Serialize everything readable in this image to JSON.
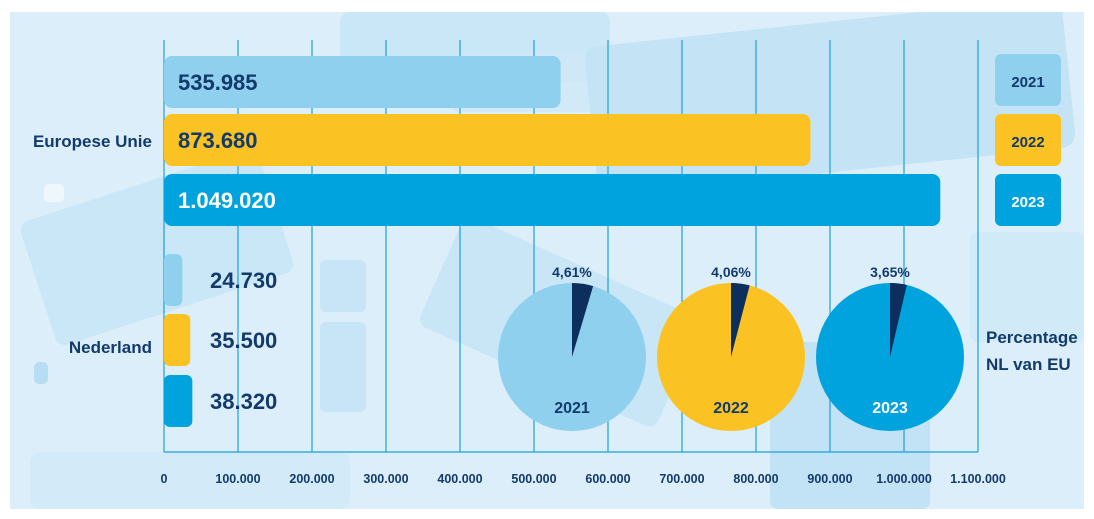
{
  "colors": {
    "y2021": "#8fd0ef",
    "y2022": "#fbc224",
    "y2023": "#00a3de",
    "text": "#123a6b",
    "grid": "#1ba1da",
    "slice": "#0d2f5e",
    "white": "#ffffff"
  },
  "chart_data": [
    {
      "type": "bar",
      "orientation": "horizontal",
      "categories": [
        "Europese Unie",
        "Nederland"
      ],
      "series": [
        {
          "name": "2021",
          "values": [
            535985,
            24730
          ],
          "labels": [
            "535.985",
            "24.730"
          ]
        },
        {
          "name": "2022",
          "values": [
            873680,
            35500
          ],
          "labels": [
            "873.680",
            "35.500"
          ]
        },
        {
          "name": "2023",
          "values": [
            1049020,
            38320
          ],
          "labels": [
            "1.049.020",
            "38.320"
          ]
        }
      ],
      "xlim": [
        0,
        1100000
      ],
      "x_ticks": [
        "0",
        "100.000",
        "200.000",
        "300.000",
        "400.000",
        "500.000",
        "600.000",
        "700.000",
        "800.000",
        "900.000",
        "1.000.000",
        "1.100.000"
      ],
      "grid": true,
      "legend": [
        "2021",
        "2022",
        "2023"
      ],
      "legend_position": "right"
    },
    {
      "type": "pie",
      "title": "Percentage NL van EU",
      "title_lines": [
        "Percentage",
        "NL van EU"
      ],
      "pies": [
        {
          "year": "2021",
          "percent": 4.61,
          "label": "4,61%"
        },
        {
          "year": "2022",
          "percent": 4.06,
          "label": "4,06%"
        },
        {
          "year": "2023",
          "percent": 3.65,
          "label": "3,65%"
        }
      ]
    }
  ]
}
